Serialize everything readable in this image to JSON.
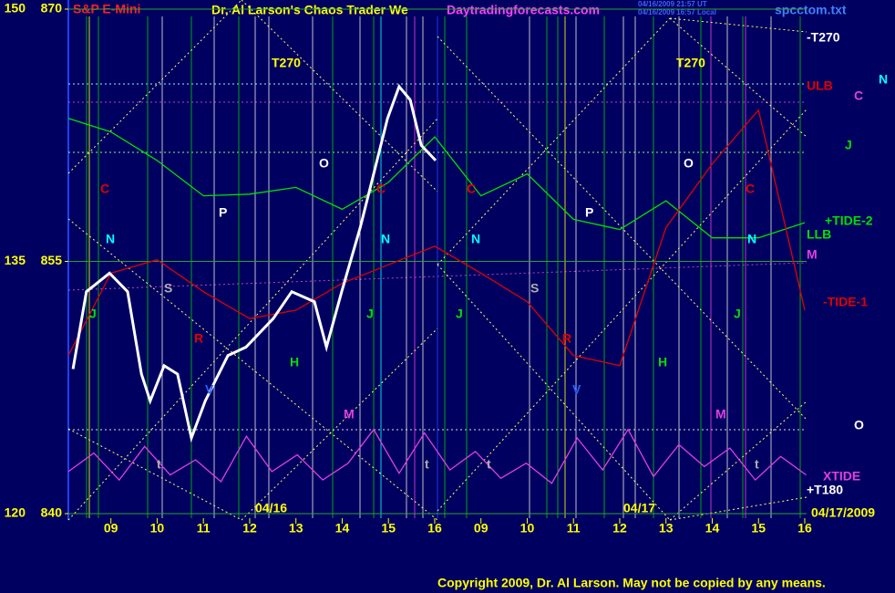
{
  "chart_data": {
    "type": "line",
    "title": "Dr. Al Larson's Chaos Trader We",
    "subtitle": "S&P E-Mini",
    "site": "Daytradingforecasts.com",
    "timestamps": [
      "04/16/2009 21:57 UT",
      "04/16/2009 16:57 Local"
    ],
    "file": "spcctom.txt",
    "copyright": "Copyright 2009, Dr. Al Larson. May not be copied by any means.",
    "day_labels": [
      "04/16",
      "04/17",
      "04/17/2009"
    ],
    "xlim": [
      -0.92,
      15.04
    ],
    "xticks": [
      {
        "value": 0,
        "label": "09"
      },
      {
        "value": 1,
        "label": "10"
      },
      {
        "value": 2,
        "label": "11"
      },
      {
        "value": 3,
        "label": "12"
      },
      {
        "value": 4,
        "label": "13"
      },
      {
        "value": 5,
        "label": "14"
      },
      {
        "value": 6,
        "label": "15"
      },
      {
        "value": 7,
        "label": "16"
      },
      {
        "value": 8,
        "label": "09"
      },
      {
        "value": 9,
        "label": "10"
      },
      {
        "value": 10,
        "label": "11"
      },
      {
        "value": 11,
        "label": "12"
      },
      {
        "value": 12,
        "label": "13"
      },
      {
        "value": 13,
        "label": "14"
      },
      {
        "value": 14,
        "label": "15"
      },
      {
        "value": 15,
        "label": "16"
      }
    ],
    "ylim": [
      120,
      150
    ],
    "yticks": [
      120,
      135,
      150
    ],
    "y2lim": [
      840,
      870
    ],
    "y2ticks": [
      840,
      855,
      870
    ],
    "grid": true,
    "price": {
      "color": "#ffffff",
      "x": [
        -0.82,
        -0.53,
        -0.03,
        0.36,
        0.66,
        0.85,
        1.15,
        1.44,
        1.74,
        2.04,
        2.53,
        2.92,
        3.51,
        3.91,
        4.4,
        4.66,
        4.99,
        5.39,
        5.68,
        5.98,
        6.23,
        6.47,
        6.71,
        7.02
      ],
      "values": [
        128.6,
        133.2,
        134.3,
        133.2,
        128.3,
        126.7,
        128.8,
        128.3,
        124.5,
        126.7,
        129.4,
        129.9,
        131.6,
        133.2,
        132.6,
        129.9,
        133.2,
        137.0,
        140.2,
        143.5,
        145.4,
        144.6,
        141.9,
        141.0
      ]
    },
    "series": [
      {
        "name": "+TIDE-2",
        "color": "#00e000",
        "x": [
          -0.92,
          0,
          1,
          2,
          3,
          4,
          5,
          6,
          7,
          8,
          9,
          10,
          11,
          12,
          13,
          14,
          15
        ],
        "values": [
          143.5,
          142.7,
          141.0,
          138.9,
          139.0,
          139.4,
          138.1,
          139.7,
          142.4,
          138.9,
          140.2,
          137.5,
          136.9,
          138.6,
          136.4,
          136.4,
          137.3
        ]
      },
      {
        "name": "-TIDE-1",
        "color": "#e00000",
        "x": [
          -0.92,
          0,
          1,
          2,
          3,
          4,
          5,
          6,
          7,
          8,
          9,
          10,
          11,
          12,
          13,
          14,
          15
        ],
        "values": [
          129.4,
          134.3,
          135.1,
          133.2,
          131.6,
          132.1,
          133.7,
          134.8,
          135.9,
          134.3,
          132.6,
          129.4,
          128.8,
          137.0,
          140.8,
          144.0,
          132.1
        ]
      },
      {
        "name": "XTIDE",
        "color": "#e040e0",
        "x": [
          -0.92,
          -0.37,
          0.18,
          0.73,
          1.28,
          1.83,
          2.38,
          2.93,
          3.48,
          4.03,
          4.58,
          5.13,
          5.68,
          6.23,
          6.78,
          7.33,
          7.88,
          8.43,
          8.98,
          9.53,
          10.08,
          10.63,
          11.18,
          11.73,
          12.28,
          12.83,
          13.38,
          13.93,
          14.48,
          15.03
        ],
        "values": [
          122.5,
          123.6,
          122.0,
          124.0,
          122.3,
          123.2,
          121.9,
          124.6,
          122.5,
          123.5,
          122.0,
          123.0,
          125.0,
          122.4,
          124.8,
          122.6,
          123.7,
          122.1,
          123.0,
          121.8,
          124.5,
          122.6,
          125.0,
          122.2,
          124.1,
          122.8,
          123.9,
          122.0,
          123.4,
          122.3
        ]
      }
    ],
    "annotations": [
      {
        "text": "T270",
        "color": "#ffff00"
      },
      {
        "text": "T270",
        "color": "#ffff00"
      },
      {
        "text": "C",
        "color": "#e00000"
      },
      {
        "text": "C",
        "color": "#e00000"
      },
      {
        "text": "C",
        "color": "#e00000"
      },
      {
        "text": "C",
        "color": "#e00000"
      },
      {
        "text": "N",
        "color": "#00ffff"
      },
      {
        "text": "N",
        "color": "#00ffff"
      },
      {
        "text": "N",
        "color": "#00ffff"
      },
      {
        "text": "N",
        "color": "#00ffff"
      },
      {
        "text": "P",
        "color": "#ffffff"
      },
      {
        "text": "P",
        "color": "#ffffff"
      },
      {
        "text": "O",
        "color": "#ffffff"
      },
      {
        "text": "O",
        "color": "#ffffff"
      },
      {
        "text": "S",
        "color": "#b0b0b0"
      },
      {
        "text": "S",
        "color": "#b0b0b0"
      },
      {
        "text": "J",
        "color": "#00e000"
      },
      {
        "text": "J",
        "color": "#00e000"
      },
      {
        "text": "J",
        "color": "#00e000"
      },
      {
        "text": "J",
        "color": "#00e000"
      },
      {
        "text": "H",
        "color": "#00e000"
      },
      {
        "text": "H",
        "color": "#00e000"
      },
      {
        "text": "M",
        "color": "#e040e0"
      },
      {
        "text": "M",
        "color": "#e040e0"
      },
      {
        "text": "R",
        "color": "#e00000"
      },
      {
        "text": "R",
        "color": "#e00000"
      },
      {
        "text": "V",
        "color": "#2060ff"
      },
      {
        "text": "V",
        "color": "#2060ff"
      },
      {
        "text": "t",
        "color": "#b0b0b0"
      },
      {
        "text": "t",
        "color": "#b0b0b0"
      },
      {
        "text": "t",
        "color": "#b0b0b0"
      },
      {
        "text": "t",
        "color": "#b0b0b0"
      },
      {
        "text": "-T270",
        "color": "#ffffff"
      },
      {
        "text": "ULB",
        "color": "#e00000"
      },
      {
        "text": "C",
        "color": "#e040e0"
      },
      {
        "text": "N",
        "color": "#00ffff"
      },
      {
        "text": "J",
        "color": "#00e000"
      },
      {
        "text": "LLB",
        "color": "#00e000"
      },
      {
        "text": "M",
        "color": "#e040e0"
      },
      {
        "text": "O",
        "color": "#ffffff"
      },
      {
        "text": "+T180",
        "color": "#ffffff"
      }
    ]
  }
}
